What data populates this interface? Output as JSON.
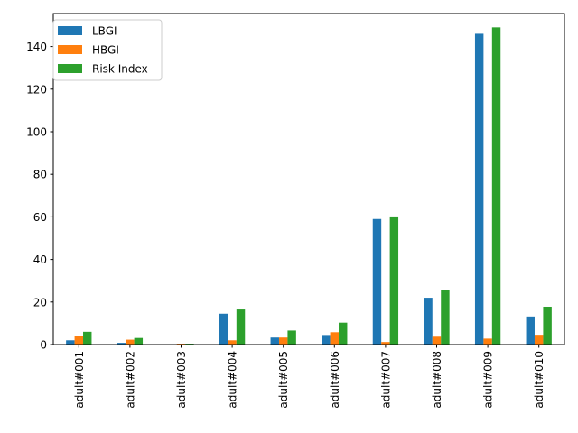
{
  "chart_data": {
    "type": "bar",
    "title": "",
    "xlabel": "",
    "ylabel": "",
    "categories": [
      "adult#001",
      "adult#002",
      "adult#003",
      "adult#004",
      "adult#005",
      "adult#006",
      "adult#007",
      "adult#008",
      "adult#009",
      "adult#010"
    ],
    "series": [
      {
        "name": "LBGI",
        "color": "#1f77b4",
        "values": [
          2.0,
          0.8,
          0.0,
          14.5,
          3.3,
          4.5,
          59.0,
          22.0,
          146.0,
          13.2
        ]
      },
      {
        "name": "HBGI",
        "color": "#ff7f0e",
        "values": [
          4.0,
          2.3,
          0.4,
          2.0,
          3.3,
          5.8,
          1.2,
          3.7,
          2.8,
          4.6
        ]
      },
      {
        "name": "Risk Index",
        "color": "#2ca02c",
        "values": [
          6.0,
          3.1,
          0.4,
          16.5,
          6.6,
          10.3,
          60.2,
          25.7,
          149.0,
          17.8
        ]
      }
    ],
    "ylim": [
      0,
      155.5
    ],
    "yticks": [
      0,
      20,
      40,
      60,
      80,
      100,
      120,
      140
    ],
    "grid": false,
    "legend": "top-left"
  }
}
